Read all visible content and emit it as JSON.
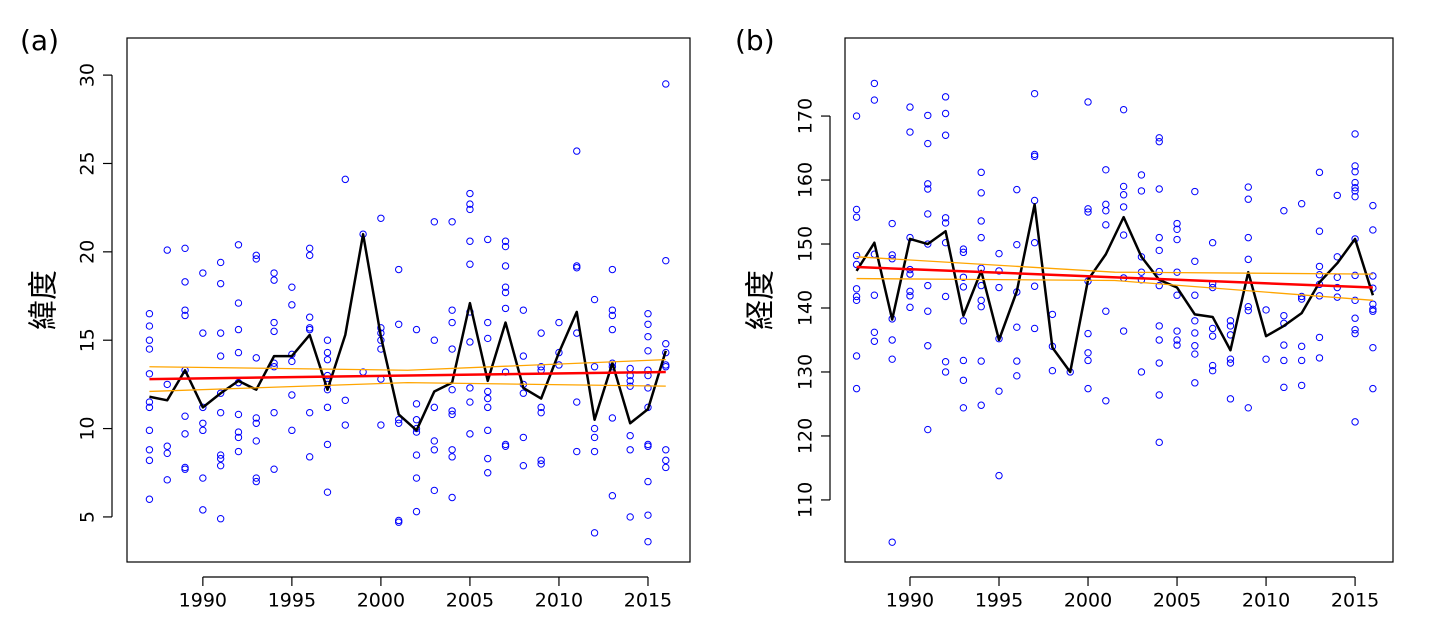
{
  "chart_data": [
    {
      "type": "scatter",
      "label": "(a)",
      "y_label": "緯度",
      "xlim": [
        1985.74,
        2017.36
      ],
      "ylim": [
        2.45,
        32.1
      ],
      "xticks": [
        1990,
        1995,
        2000,
        2005,
        2010,
        2015
      ],
      "yticks": [
        5,
        10,
        15,
        20,
        25,
        30
      ],
      "points": {
        "color": "#0000ff",
        "groups": [
          {
            "x": 1987,
            "y": [
              16.5,
              15.8,
              15.0,
              14.5,
              13.1,
              11.5,
              11.2,
              9.9,
              8.8,
              8.2,
              6.0
            ]
          },
          {
            "x": 1988,
            "y": [
              20.1,
              12.5,
              9.0,
              8.6,
              7.1
            ]
          },
          {
            "x": 1989,
            "y": [
              20.2,
              18.3,
              16.7,
              16.4,
              13.3,
              10.7,
              9.7,
              7.8,
              7.7
            ]
          },
          {
            "x": 1990,
            "y": [
              18.8,
              15.4,
              11.2,
              10.3,
              9.9,
              7.2,
              5.4
            ]
          },
          {
            "x": 1991,
            "y": [
              19.4,
              18.2,
              15.4,
              14.1,
              12.0,
              10.9,
              8.5,
              8.3,
              7.9,
              4.9
            ]
          },
          {
            "x": 1992,
            "y": [
              20.4,
              17.1,
              15.6,
              14.3,
              12.6,
              10.8,
              9.8,
              9.5,
              8.7
            ]
          },
          {
            "x": 1993,
            "y": [
              19.8,
              19.6,
              14.0,
              10.6,
              10.3,
              9.3,
              7.2,
              7.0
            ]
          },
          {
            "x": 1994,
            "y": [
              18.8,
              18.4,
              16.0,
              15.5,
              13.7,
              13.5,
              10.9,
              7.7
            ]
          },
          {
            "x": 1995,
            "y": [
              18.0,
              17.0,
              14.2,
              13.8,
              11.9,
              9.9
            ]
          },
          {
            "x": 1996,
            "y": [
              20.2,
              19.8,
              16.3,
              15.7,
              15.6,
              10.9,
              8.4
            ]
          },
          {
            "x": 1997,
            "y": [
              15.0,
              14.3,
              13.9,
              13.0,
              12.5,
              12.2,
              11.2,
              9.1,
              6.4
            ]
          },
          {
            "x": 1998,
            "y": [
              24.1,
              11.6,
              10.2
            ]
          },
          {
            "x": 1999,
            "y": [
              21.0,
              13.2
            ]
          },
          {
            "x": 2000,
            "y": [
              21.9,
              15.7,
              15.4,
              15.0,
              14.5,
              12.8,
              10.2
            ]
          },
          {
            "x": 2001,
            "y": [
              19.0,
              15.9,
              10.5,
              10.3,
              4.8,
              4.7
            ]
          },
          {
            "x": 2002,
            "y": [
              15.6,
              11.4,
              10.5,
              10.0,
              9.8,
              8.5,
              7.2,
              5.3
            ]
          },
          {
            "x": 2003,
            "y": [
              21.7,
              15.0,
              11.2,
              9.3,
              8.8,
              6.5
            ]
          },
          {
            "x": 2004,
            "y": [
              21.7,
              16.7,
              16.0,
              14.5,
              12.2,
              11.0,
              10.8,
              8.8,
              8.4,
              6.1
            ]
          },
          {
            "x": 2005,
            "y": [
              23.3,
              22.7,
              22.4,
              20.6,
              19.3,
              16.6,
              14.9,
              12.3,
              11.5,
              9.7
            ]
          },
          {
            "x": 2006,
            "y": [
              20.7,
              16.0,
              15.1,
              12.1,
              11.7,
              11.2,
              9.9,
              8.3,
              7.5
            ]
          },
          {
            "x": 2007,
            "y": [
              20.6,
              20.3,
              19.2,
              18.0,
              17.7,
              16.8,
              13.2,
              9.1,
              9.0
            ]
          },
          {
            "x": 2008,
            "y": [
              16.7,
              14.1,
              12.5,
              12.0,
              9.5,
              7.9
            ]
          },
          {
            "x": 2009,
            "y": [
              15.4,
              13.5,
              13.3,
              11.2,
              10.9,
              8.2,
              8.0
            ]
          },
          {
            "x": 2010,
            "y": [
              16.0,
              14.3,
              13.6
            ]
          },
          {
            "x": 2011,
            "y": [
              25.7,
              19.2,
              19.1,
              15.4,
              11.5,
              8.7
            ]
          },
          {
            "x": 2012,
            "y": [
              17.3,
              13.5,
              10.0,
              9.5,
              8.7,
              4.1
            ]
          },
          {
            "x": 2013,
            "y": [
              19.0,
              16.7,
              16.4,
              15.6,
              13.7,
              13.5,
              10.6,
              6.2
            ]
          },
          {
            "x": 2014,
            "y": [
              13.4,
              13.0,
              12.7,
              12.4,
              9.6,
              8.8,
              5.0
            ]
          },
          {
            "x": 2015,
            "y": [
              16.5,
              15.9,
              15.2,
              14.4,
              13.3,
              13.0,
              12.3,
              11.2,
              9.1,
              9.0,
              7.0,
              5.1,
              3.6
            ]
          },
          {
            "x": 2016,
            "y": [
              29.5,
              19.5,
              14.8,
              14.3,
              13.6,
              13.5,
              8.8,
              8.2,
              7.8
            ]
          }
        ]
      },
      "lines": [
        {
          "color": "#000000",
          "x": [
            1987,
            1988,
            1989,
            1990,
            1991,
            1992,
            1993,
            1994,
            1995,
            1996,
            1997,
            1998,
            1999,
            2000,
            2001,
            2002,
            2003,
            2004,
            2005,
            2006,
            2007,
            2008,
            2009,
            2010,
            2011,
            2012,
            2013,
            2014,
            2015,
            2016
          ],
          "values": [
            11.8,
            11.6,
            13.3,
            11.2,
            12.0,
            12.7,
            12.2,
            14.1,
            14.1,
            15.3,
            12.2,
            15.3,
            21.0,
            15.2,
            10.8,
            9.9,
            12.1,
            12.6,
            17.1,
            12.7,
            16.0,
            12.3,
            11.7,
            14.3,
            16.6,
            10.5,
            13.7,
            10.3,
            11.1,
            14.4
          ]
        },
        {
          "color": "#ffa500",
          "x": [
            1987,
            2001.5,
            2016
          ],
          "values": [
            13.5,
            13.3,
            13.9
          ]
        },
        {
          "color": "#ffa500",
          "x": [
            1987,
            2001.5,
            2016
          ],
          "values": [
            12.1,
            12.6,
            12.4
          ]
        },
        {
          "color": "#ff0000",
          "x": [
            1987,
            2016
          ],
          "values": [
            12.8,
            13.2
          ]
        }
      ]
    },
    {
      "type": "scatter",
      "label": "(b)",
      "y_label": "経度",
      "xlim": [
        1986.35,
        2017.13
      ],
      "ylim": [
        100.3,
        182.2
      ],
      "xticks": [
        1990,
        1995,
        2000,
        2005,
        2010,
        2015
      ],
      "yticks": [
        110,
        120,
        130,
        140,
        150,
        160,
        170
      ],
      "points": {
        "color": "#0000ff",
        "groups": [
          {
            "x": 1987,
            "y": [
              170.0,
              155.4,
              154.2,
              148.2,
              146.8,
              143.0,
              141.8,
              141.2,
              132.5,
              127.4
            ]
          },
          {
            "x": 1988,
            "y": [
              175.1,
              172.5,
              148.4,
              142.0,
              136.2,
              134.8
            ]
          },
          {
            "x": 1989,
            "y": [
              153.2,
              148.3,
              147.7,
              138.3,
              135.0,
              132.0,
              103.4
            ]
          },
          {
            "x": 1990,
            "y": [
              171.4,
              167.5,
              151.0,
              146.0,
              145.3,
              142.6,
              141.9,
              140.1
            ]
          },
          {
            "x": 1991,
            "y": [
              170.1,
              165.7,
              159.4,
              158.6,
              154.7,
              150.0,
              143.5,
              139.5,
              134.1,
              121.0
            ]
          },
          {
            "x": 1992,
            "y": [
              173.0,
              170.4,
              167.0,
              154.1,
              153.3,
              150.2,
              141.8,
              131.6,
              130.0
            ]
          },
          {
            "x": 1993,
            "y": [
              149.2,
              148.7,
              144.8,
              143.3,
              138.0,
              131.8,
              128.7,
              124.4
            ]
          },
          {
            "x": 1994,
            "y": [
              161.2,
              158.0,
              153.6,
              151.0,
              146.2,
              143.5,
              141.2,
              140.2,
              131.7,
              124.8
            ]
          },
          {
            "x": 1995,
            "y": [
              148.5,
              145.8,
              143.2,
              135.2,
              127.0,
              113.8
            ]
          },
          {
            "x": 1996,
            "y": [
              158.5,
              149.9,
              142.5,
              137.0,
              131.7,
              129.4
            ]
          },
          {
            "x": 1997,
            "y": [
              173.5,
              164.0,
              163.7,
              156.8,
              150.2,
              143.4,
              136.8
            ]
          },
          {
            "x": 1998,
            "y": [
              139.0,
              134.0,
              130.2
            ]
          },
          {
            "x": 1999,
            "y": [
              130.0
            ]
          },
          {
            "x": 2000,
            "y": [
              172.2,
              155.5,
              155.0,
              144.2,
              136.0,
              133.0,
              131.8,
              127.4
            ]
          },
          {
            "x": 2001,
            "y": [
              161.6,
              156.2,
              155.2,
              153.0,
              139.5,
              125.5
            ]
          },
          {
            "x": 2002,
            "y": [
              171.0,
              159.0,
              157.7,
              155.8,
              151.4,
              144.7,
              136.4
            ]
          },
          {
            "x": 2003,
            "y": [
              160.8,
              158.3,
              148.0,
              145.6,
              144.4,
              130.0
            ]
          },
          {
            "x": 2004,
            "y": [
              166.6,
              166.0,
              158.6,
              151.0,
              149.0,
              145.7,
              143.5,
              137.2,
              135.0,
              131.4,
              126.4,
              119.0
            ]
          },
          {
            "x": 2005,
            "y": [
              153.2,
              152.3,
              150.7,
              145.6,
              142.0,
              136.4,
              135.0,
              134.2
            ]
          },
          {
            "x": 2006,
            "y": [
              158.2,
              147.3,
              142.0,
              138.0,
              136.1,
              134.1,
              132.8,
              128.3
            ]
          },
          {
            "x": 2007,
            "y": [
              150.2,
              143.8,
              143.2,
              136.8,
              135.6,
              131.0,
              130.2
            ]
          },
          {
            "x": 2008,
            "y": [
              138.0,
              137.2,
              135.8,
              132.0,
              131.4,
              125.8
            ]
          },
          {
            "x": 2009,
            "y": [
              158.9,
              157.0,
              151.0,
              147.6,
              140.2,
              139.6,
              124.4
            ]
          },
          {
            "x": 2010,
            "y": [
              139.7,
              132.0
            ]
          },
          {
            "x": 2011,
            "y": [
              155.2,
              138.8,
              137.6,
              134.2,
              131.8,
              127.6
            ]
          },
          {
            "x": 2012,
            "y": [
              156.3,
              141.8,
              141.4,
              134.0,
              131.8,
              127.9
            ]
          },
          {
            "x": 2013,
            "y": [
              161.2,
              152.0,
              146.5,
              145.2,
              143.7,
              141.9,
              135.4,
              132.2
            ]
          },
          {
            "x": 2014,
            "y": [
              157.6,
              148.0,
              144.8,
              143.2,
              141.7
            ]
          },
          {
            "x": 2015,
            "y": [
              167.2,
              162.2,
              161.3,
              159.6,
              158.8,
              158.3,
              157.4,
              150.8,
              145.1,
              141.2,
              138.4,
              136.6,
              136.0,
              122.2
            ]
          },
          {
            "x": 2016,
            "y": [
              156.0,
              152.2,
              145.0,
              143.1,
              140.6,
              139.8,
              139.5,
              133.8,
              127.4
            ]
          }
        ]
      },
      "lines": [
        {
          "color": "#000000",
          "x": [
            1987,
            1988,
            1989,
            1990,
            1991,
            1992,
            1993,
            1994,
            1995,
            1996,
            1997,
            1998,
            1999,
            2000,
            2001,
            2002,
            2003,
            2004,
            2005,
            2006,
            2007,
            2008,
            2009,
            2010,
            2011,
            2012,
            2013,
            2014,
            2015,
            2016
          ],
          "values": [
            145.8,
            150.2,
            138.2,
            150.8,
            150.0,
            152.0,
            138.8,
            145.8,
            135.0,
            142.6,
            156.2,
            133.8,
            130.0,
            144.4,
            148.4,
            154.2,
            148.0,
            144.4,
            143.2,
            139.0,
            138.6,
            133.4,
            145.6,
            135.6,
            137.2,
            139.2,
            144.0,
            147.0,
            150.8,
            142.0
          ]
        },
        {
          "color": "#ffa500",
          "x": [
            1987,
            2001.5,
            2016
          ],
          "values": [
            148.0,
            145.6,
            145.3
          ]
        },
        {
          "color": "#ffa500",
          "x": [
            1987,
            2001.5,
            2016
          ],
          "values": [
            144.6,
            144.3,
            141.2
          ]
        },
        {
          "color": "#ff0000",
          "x": [
            1987,
            2016
          ],
          "values": [
            146.4,
            143.2
          ]
        }
      ]
    }
  ]
}
